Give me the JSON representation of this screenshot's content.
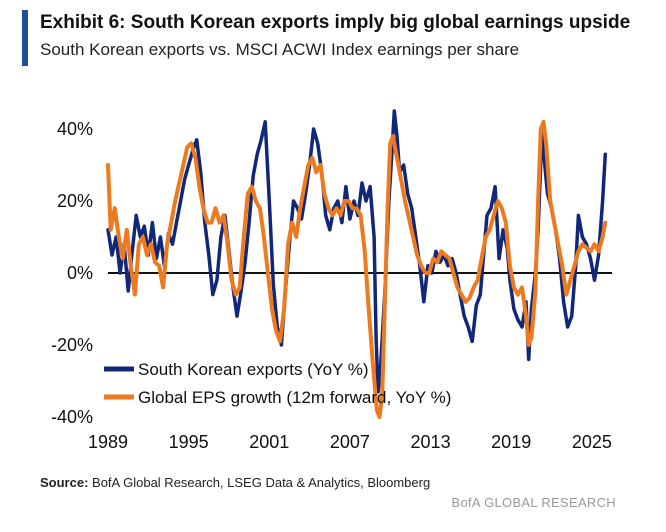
{
  "header": {
    "title": "Exhibit 6: South Korean exports imply big global earnings upside",
    "subtitle": "South Korean exports vs. MSCI ACWI Index earnings per share"
  },
  "footer": {
    "source_label": "Source:",
    "source_text": "BofA Global Research, LSEG Data & Analytics, Bloomberg",
    "brand": "BofA GLOBAL RESEARCH"
  },
  "colors": {
    "accent": "#1f4e9c",
    "exports": "#10277a",
    "eps": "#ee7a1f",
    "zero_line": "#111111"
  },
  "chart_data": {
    "type": "line",
    "title": "",
    "xlabel": "",
    "ylabel": "",
    "xlim": [
      1989.0,
      2026.5
    ],
    "ylim": [
      -40,
      45
    ],
    "x_ticks": [
      1989,
      1995,
      2001,
      2007,
      2013,
      2019,
      2025
    ],
    "y_ticks": [
      {
        "value": 40,
        "label": "40%"
      },
      {
        "value": 20,
        "label": "20%"
      },
      {
        "value": 0,
        "label": "0%"
      },
      {
        "value": -20,
        "label": "-20%"
      },
      {
        "value": -40,
        "label": "-40%"
      }
    ],
    "grid": false,
    "legend": "bottom-left",
    "series": [
      {
        "name": "South Korean exports (YoY %)",
        "points": [
          [
            1989.0,
            12
          ],
          [
            1989.3,
            5
          ],
          [
            1989.6,
            10
          ],
          [
            1989.9,
            0
          ],
          [
            1990.2,
            8
          ],
          [
            1990.5,
            -5
          ],
          [
            1990.8,
            6
          ],
          [
            1991.1,
            16
          ],
          [
            1991.4,
            10
          ],
          [
            1991.7,
            13
          ],
          [
            1992.0,
            5
          ],
          [
            1992.3,
            14
          ],
          [
            1992.6,
            4
          ],
          [
            1992.9,
            10
          ],
          [
            1993.2,
            2
          ],
          [
            1993.5,
            11
          ],
          [
            1993.8,
            8
          ],
          [
            1994.1,
            14
          ],
          [
            1994.4,
            20
          ],
          [
            1994.7,
            26
          ],
          [
            1995.0,
            30
          ],
          [
            1995.3,
            34
          ],
          [
            1995.6,
            37
          ],
          [
            1995.9,
            28
          ],
          [
            1996.2,
            14
          ],
          [
            1996.5,
            5
          ],
          [
            1996.8,
            -6
          ],
          [
            1997.1,
            -2
          ],
          [
            1997.4,
            10
          ],
          [
            1997.7,
            16
          ],
          [
            1998.0,
            6
          ],
          [
            1998.3,
            -4
          ],
          [
            1998.6,
            -12
          ],
          [
            1998.9,
            -5
          ],
          [
            1999.2,
            3
          ],
          [
            1999.5,
            14
          ],
          [
            1999.8,
            27
          ],
          [
            2000.1,
            33
          ],
          [
            2000.4,
            37
          ],
          [
            2000.7,
            42
          ],
          [
            2001.0,
            20
          ],
          [
            2001.3,
            -3
          ],
          [
            2001.6,
            -15
          ],
          [
            2001.9,
            -20
          ],
          [
            2002.2,
            -5
          ],
          [
            2002.5,
            8
          ],
          [
            2002.8,
            20
          ],
          [
            2003.1,
            18
          ],
          [
            2003.4,
            15
          ],
          [
            2003.7,
            22
          ],
          [
            2004.0,
            30
          ],
          [
            2004.3,
            40
          ],
          [
            2004.6,
            36
          ],
          [
            2004.9,
            28
          ],
          [
            2005.2,
            16
          ],
          [
            2005.5,
            12
          ],
          [
            2005.8,
            18
          ],
          [
            2006.1,
            20
          ],
          [
            2006.4,
            14
          ],
          [
            2006.7,
            24
          ],
          [
            2007.0,
            15
          ],
          [
            2007.3,
            20
          ],
          [
            2007.6,
            16
          ],
          [
            2007.9,
            25
          ],
          [
            2008.2,
            20
          ],
          [
            2008.5,
            24
          ],
          [
            2008.8,
            10
          ],
          [
            2008.95,
            -18
          ],
          [
            2009.1,
            -33
          ],
          [
            2009.3,
            -25
          ],
          [
            2009.6,
            -5
          ],
          [
            2009.9,
            20
          ],
          [
            2010.1,
            32
          ],
          [
            2010.3,
            45
          ],
          [
            2010.5,
            38
          ],
          [
            2010.7,
            28
          ],
          [
            2011.0,
            30
          ],
          [
            2011.3,
            22
          ],
          [
            2011.6,
            18
          ],
          [
            2011.9,
            10
          ],
          [
            2012.2,
            2
          ],
          [
            2012.5,
            -8
          ],
          [
            2012.8,
            2
          ],
          [
            2013.1,
            0
          ],
          [
            2013.4,
            6
          ],
          [
            2013.7,
            3
          ],
          [
            2014.0,
            5
          ],
          [
            2014.3,
            2
          ],
          [
            2014.6,
            4
          ],
          [
            2014.9,
            0
          ],
          [
            2015.2,
            -6
          ],
          [
            2015.5,
            -12
          ],
          [
            2015.8,
            -15
          ],
          [
            2016.1,
            -19
          ],
          [
            2016.4,
            -9
          ],
          [
            2016.7,
            -6
          ],
          [
            2016.9,
            3
          ],
          [
            2017.2,
            16
          ],
          [
            2017.5,
            18
          ],
          [
            2017.8,
            24
          ],
          [
            2018.1,
            4
          ],
          [
            2018.4,
            12
          ],
          [
            2018.7,
            7
          ],
          [
            2018.9,
            -2
          ],
          [
            2019.2,
            -10
          ],
          [
            2019.5,
            -13
          ],
          [
            2019.8,
            -15
          ],
          [
            2020.1,
            -8
          ],
          [
            2020.3,
            -24
          ],
          [
            2020.5,
            -10
          ],
          [
            2020.8,
            0
          ],
          [
            2021.0,
            12
          ],
          [
            2021.3,
            40
          ],
          [
            2021.5,
            30
          ],
          [
            2021.7,
            22
          ],
          [
            2022.0,
            18
          ],
          [
            2022.3,
            12
          ],
          [
            2022.6,
            4
          ],
          [
            2022.9,
            -8
          ],
          [
            2023.2,
            -15
          ],
          [
            2023.5,
            -12
          ],
          [
            2023.8,
            2
          ],
          [
            2024.0,
            16
          ],
          [
            2024.3,
            10
          ],
          [
            2024.6,
            8
          ],
          [
            2024.9,
            4
          ],
          [
            2025.2,
            -2
          ],
          [
            2025.5,
            5
          ],
          [
            2025.8,
            20
          ],
          [
            2026.0,
            33
          ]
        ]
      },
      {
        "name": "Global EPS growth (12m forward, YoY %)",
        "points": [
          [
            1989.0,
            30
          ],
          [
            1989.2,
            12
          ],
          [
            1989.5,
            18
          ],
          [
            1989.8,
            10
          ],
          [
            1990.1,
            4
          ],
          [
            1990.4,
            12
          ],
          [
            1990.7,
            2
          ],
          [
            1991.0,
            -6
          ],
          [
            1991.3,
            8
          ],
          [
            1991.6,
            10
          ],
          [
            1991.9,
            5
          ],
          [
            1992.2,
            8
          ],
          [
            1992.5,
            3
          ],
          [
            1992.8,
            2
          ],
          [
            1993.1,
            -4
          ],
          [
            1993.4,
            8
          ],
          [
            1993.7,
            14
          ],
          [
            1994.0,
            20
          ],
          [
            1994.3,
            25
          ],
          [
            1994.6,
            30
          ],
          [
            1994.9,
            35
          ],
          [
            1995.2,
            36
          ],
          [
            1995.5,
            32
          ],
          [
            1995.8,
            24
          ],
          [
            1996.1,
            18
          ],
          [
            1996.4,
            14
          ],
          [
            1996.7,
            14
          ],
          [
            1997.0,
            18
          ],
          [
            1997.3,
            14
          ],
          [
            1997.6,
            16
          ],
          [
            1997.9,
            8
          ],
          [
            1998.2,
            -2
          ],
          [
            1998.5,
            -6
          ],
          [
            1998.8,
            -4
          ],
          [
            1999.1,
            10
          ],
          [
            1999.4,
            22
          ],
          [
            1999.7,
            24
          ],
          [
            2000.0,
            20
          ],
          [
            2000.3,
            18
          ],
          [
            2000.6,
            10
          ],
          [
            2000.9,
            0
          ],
          [
            2001.2,
            -10
          ],
          [
            2001.5,
            -16
          ],
          [
            2001.8,
            -19
          ],
          [
            2002.1,
            -10
          ],
          [
            2002.4,
            8
          ],
          [
            2002.7,
            14
          ],
          [
            2003.0,
            10
          ],
          [
            2003.3,
            18
          ],
          [
            2003.6,
            24
          ],
          [
            2003.9,
            30
          ],
          [
            2004.2,
            32
          ],
          [
            2004.5,
            28
          ],
          [
            2004.8,
            30
          ],
          [
            2005.1,
            22
          ],
          [
            2005.4,
            18
          ],
          [
            2005.7,
            16
          ],
          [
            2006.0,
            18
          ],
          [
            2006.3,
            16
          ],
          [
            2006.6,
            20
          ],
          [
            2006.9,
            20
          ],
          [
            2007.2,
            18
          ],
          [
            2007.5,
            18
          ],
          [
            2007.8,
            16
          ],
          [
            2008.1,
            6
          ],
          [
            2008.4,
            -10
          ],
          [
            2008.7,
            -25
          ],
          [
            2009.0,
            -38
          ],
          [
            2009.2,
            -40
          ],
          [
            2009.4,
            -34
          ],
          [
            2009.6,
            -8
          ],
          [
            2009.8,
            18
          ],
          [
            2010.0,
            36
          ],
          [
            2010.2,
            38
          ],
          [
            2010.5,
            32
          ],
          [
            2010.8,
            26
          ],
          [
            2011.1,
            20
          ],
          [
            2011.4,
            15
          ],
          [
            2011.7,
            10
          ],
          [
            2012.0,
            5
          ],
          [
            2012.3,
            2
          ],
          [
            2012.6,
            0
          ],
          [
            2012.9,
            0
          ],
          [
            2013.2,
            4
          ],
          [
            2013.5,
            3
          ],
          [
            2013.8,
            6
          ],
          [
            2014.1,
            5
          ],
          [
            2014.4,
            4
          ],
          [
            2014.7,
            0
          ],
          [
            2015.0,
            -4
          ],
          [
            2015.3,
            -6
          ],
          [
            2015.6,
            -8
          ],
          [
            2015.9,
            -7
          ],
          [
            2016.2,
            -4
          ],
          [
            2016.5,
            -2
          ],
          [
            2016.8,
            4
          ],
          [
            2017.1,
            10
          ],
          [
            2017.4,
            12
          ],
          [
            2017.7,
            16
          ],
          [
            2018.0,
            20
          ],
          [
            2018.3,
            18
          ],
          [
            2018.6,
            14
          ],
          [
            2018.9,
            2
          ],
          [
            2019.2,
            -4
          ],
          [
            2019.5,
            -6
          ],
          [
            2019.8,
            -4
          ],
          [
            2020.1,
            -12
          ],
          [
            2020.3,
            -20
          ],
          [
            2020.5,
            -18
          ],
          [
            2020.8,
            -5
          ],
          [
            2021.0,
            20
          ],
          [
            2021.2,
            40
          ],
          [
            2021.4,
            42
          ],
          [
            2021.6,
            36
          ],
          [
            2021.9,
            20
          ],
          [
            2022.2,
            14
          ],
          [
            2022.5,
            8
          ],
          [
            2022.8,
            2
          ],
          [
            2023.1,
            -6
          ],
          [
            2023.4,
            -2
          ],
          [
            2023.7,
            2
          ],
          [
            2024.0,
            6
          ],
          [
            2024.3,
            8
          ],
          [
            2024.6,
            7
          ],
          [
            2024.9,
            6
          ],
          [
            2025.2,
            8
          ],
          [
            2025.5,
            6
          ],
          [
            2025.8,
            10
          ],
          [
            2026.0,
            14
          ]
        ]
      }
    ]
  }
}
